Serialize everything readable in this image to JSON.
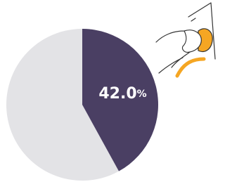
{
  "chart_data": {
    "type": "pie",
    "values": [
      42.0,
      58.0
    ],
    "value_labels": [
      "42.0%",
      null
    ],
    "colors": [
      "#4a3f63",
      "#e3e3e6"
    ],
    "start_angle": 0,
    "direction": "clockwise"
  }
}
